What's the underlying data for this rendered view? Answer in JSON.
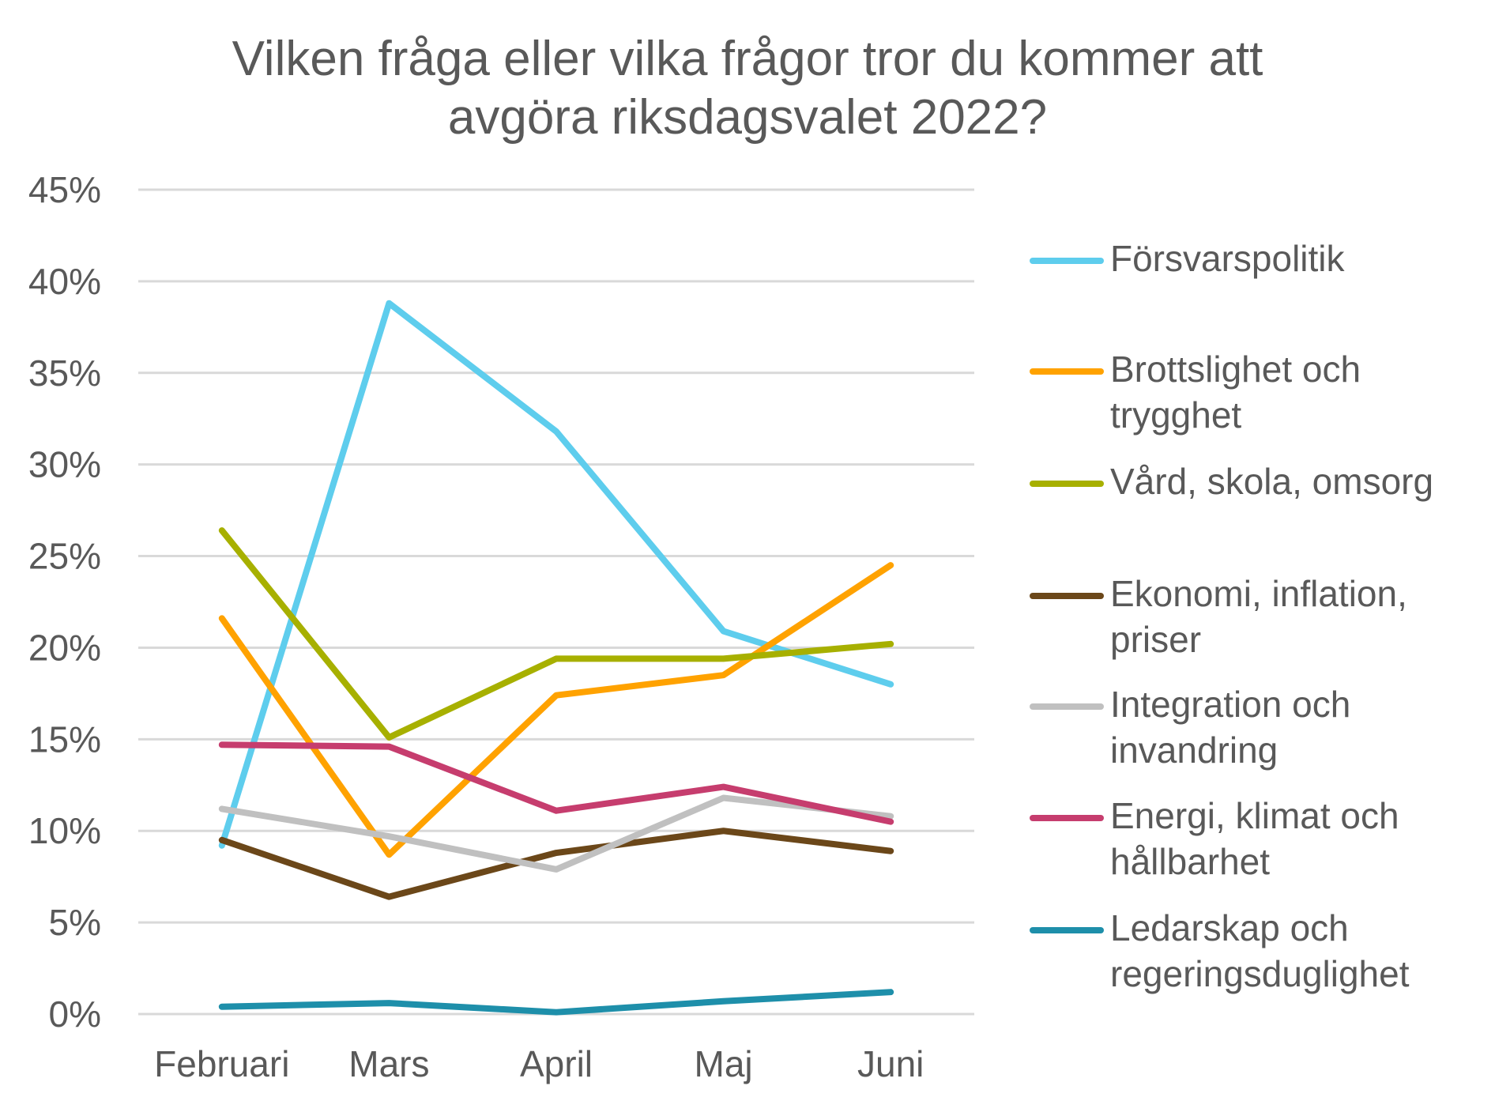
{
  "chart_data": {
    "type": "line",
    "title": "Vilken fråga eller vilka frågor tror du kommer att avgöra riksdagsvalet 2022?",
    "title_lines": [
      "Vilken fråga eller vilka frågor tror du kommer att",
      "avgöra riksdagsvalet 2022?"
    ],
    "xlabel": "",
    "ylabel": "",
    "categories": [
      "Februari",
      "Mars",
      "April",
      "Maj",
      "Juni"
    ],
    "ylim": [
      0,
      45
    ],
    "yticks": [
      0,
      5,
      10,
      15,
      20,
      25,
      30,
      35,
      40,
      45
    ],
    "ytick_labels": [
      "0%",
      "5%",
      "10%",
      "15%",
      "20%",
      "25%",
      "30%",
      "35%",
      "40%",
      "45%"
    ],
    "grid": "horizontal",
    "legend_position": "right",
    "series": [
      {
        "name": "Försvarspolitik",
        "name_lines": [
          "Försvarspolitik"
        ],
        "color": "#5ECDED",
        "values": [
          9.2,
          38.8,
          31.8,
          20.9,
          18.0
        ]
      },
      {
        "name": "Brottslighet och trygghet",
        "name_lines": [
          "Brottslighet och",
          "trygghet"
        ],
        "color": "#FFA200",
        "values": [
          21.6,
          8.7,
          17.4,
          18.5,
          24.5
        ]
      },
      {
        "name": "Vård, skola, omsorg",
        "name_lines": [
          "Vård, skola, omsorg"
        ],
        "color": "#A7B000",
        "values": [
          26.4,
          15.1,
          19.4,
          19.4,
          20.2
        ]
      },
      {
        "name": "Ekonomi, inflation, priser",
        "name_lines": [
          "Ekonomi, inflation,",
          "priser"
        ],
        "color": "#6B4719",
        "values": [
          9.5,
          6.4,
          8.8,
          10.0,
          8.9
        ]
      },
      {
        "name": "Integration och invandring",
        "name_lines": [
          "Integration och",
          "invandring"
        ],
        "color": "#C0C0C0",
        "values": [
          11.2,
          9.7,
          7.9,
          11.8,
          10.8
        ]
      },
      {
        "name": "Energi, klimat och hållbarhet",
        "name_lines": [
          "Energi, klimat och",
          "hållbarhet"
        ],
        "color": "#C63D6E",
        "values": [
          14.7,
          14.6,
          11.1,
          12.4,
          10.5
        ]
      },
      {
        "name": "Ledarskap och regeringsduglighet",
        "name_lines": [
          "Ledarskap och",
          "regeringsduglighet"
        ],
        "color": "#1E8FAA",
        "values": [
          0.4,
          0.6,
          0.1,
          0.7,
          1.2
        ]
      }
    ]
  }
}
